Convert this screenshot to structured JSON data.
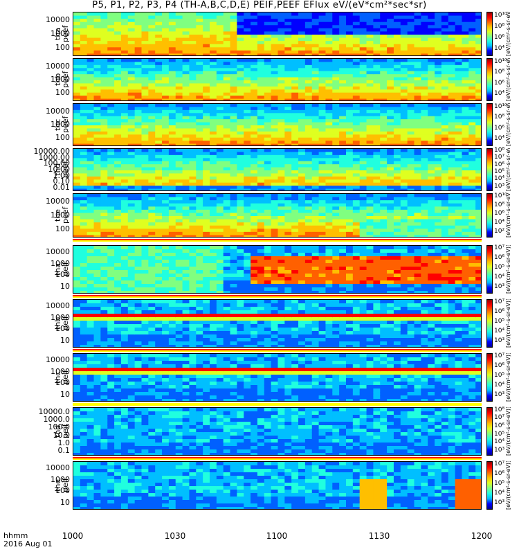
{
  "title": "P5, P1, P2, P3, P4 (TH-A,B,C,D,E) PEIF,PEEF EFlux eV/(eV*cm²*sec*sr)",
  "colorbar_unit": "[eV/(cm²-s-sr-eV)]",
  "x_axis": {
    "labels": [
      "1000",
      "1030",
      "1100",
      "1130",
      "1200"
    ],
    "footer_1": "hhmm",
    "footer_2": "2016 Aug 01"
  },
  "chart_data": [
    {
      "type": "heatmap",
      "label_1": "tha",
      "label_2": "peef",
      "yticks": [
        "10000",
        "1000",
        "100"
      ],
      "cbar": [
        "10¹⁰",
        "10⁸",
        "10⁶",
        "10⁴"
      ],
      "y_scale": "log"
    },
    {
      "type": "heatmap",
      "label_1": "thb",
      "label_2": "peef",
      "yticks": [
        "10000",
        "1000",
        "100"
      ],
      "cbar": [
        "10¹⁰",
        "10⁸",
        "10⁶",
        "10⁴"
      ],
      "y_scale": "log"
    },
    {
      "type": "heatmap",
      "label_1": "thc",
      "label_2": "peef",
      "yticks": [
        "10000",
        "1000",
        "100"
      ],
      "cbar": [
        "10¹⁰",
        "10⁸",
        "10⁶",
        "10⁴"
      ],
      "y_scale": "log"
    },
    {
      "type": "heatmap",
      "label_1": "thd",
      "label_2": "peef",
      "yticks": [
        "10000.00",
        "1000.00",
        "100.00",
        "10.00",
        "1.00",
        "0.10",
        "0.01"
      ],
      "cbar": [
        "10⁸",
        "10⁷",
        "10⁶",
        "10⁵",
        "10⁴",
        "10³"
      ],
      "y_scale": "log"
    },
    {
      "type": "heatmap",
      "label_1": "the",
      "label_2": "peef",
      "yticks": [
        "10000",
        "1000",
        "100"
      ],
      "cbar": [
        "10¹⁰",
        "10⁸",
        "10⁶",
        "10⁴",
        "10²"
      ],
      "y_scale": "log"
    },
    {
      "type": "heatmap",
      "label_1": "tha",
      "label_2": "peif",
      "yticks": [
        "10000",
        "1000",
        "100",
        "10"
      ],
      "cbar": [
        "10⁷",
        "10⁶",
        "10⁵",
        "10⁴",
        "10³"
      ],
      "y_scale": "log"
    },
    {
      "type": "heatmap",
      "label_1": "thb",
      "label_2": "peif",
      "yticks": [
        "10000",
        "1000",
        "100",
        "10"
      ],
      "cbar": [
        "10⁷",
        "10⁶",
        "10⁵",
        "10⁴",
        "10³"
      ],
      "y_scale": "log"
    },
    {
      "type": "heatmap",
      "label_1": "thc",
      "label_2": "peif",
      "yticks": [
        "10000",
        "1000",
        "100",
        "10"
      ],
      "cbar": [
        "10⁷",
        "10⁶",
        "10⁵",
        "10⁴",
        "10³"
      ],
      "y_scale": "log"
    },
    {
      "type": "heatmap",
      "label_1": "thd",
      "label_2": "peif",
      "yticks": [
        "10000.0",
        "1000.0",
        "100.0",
        "10.0",
        "1.0",
        "0.1"
      ],
      "cbar": [
        "10⁸",
        "10⁷",
        "10⁶",
        "10⁵",
        "10⁴",
        "10³"
      ],
      "y_scale": "log"
    },
    {
      "type": "heatmap",
      "label_1": "the",
      "label_2": "peif",
      "yticks": [
        "10000",
        "1000",
        "100",
        "10"
      ],
      "cbar": [
        "10⁷",
        "10⁶",
        "10⁵",
        "10⁴",
        "10³"
      ],
      "y_scale": "log"
    }
  ]
}
